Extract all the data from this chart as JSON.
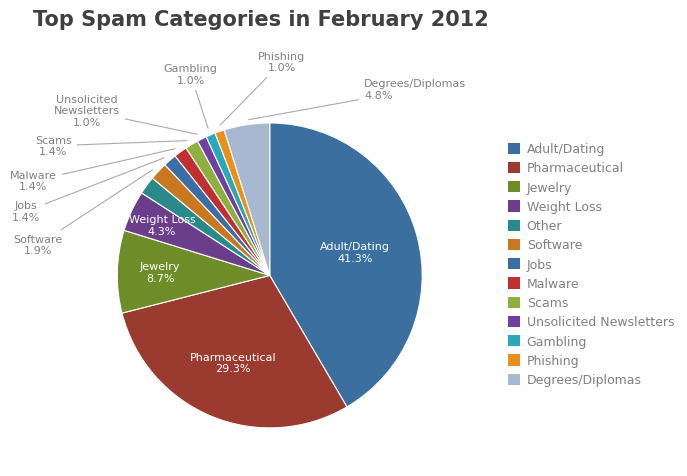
{
  "title": "Top Spam Categories in February 2012",
  "categories": [
    "Adult/Dating",
    "Pharmaceutical",
    "Jewelry",
    "Weight Loss",
    "Other",
    "Software",
    "Jobs",
    "Malware",
    "Scams",
    "Unsolicited Newsletters",
    "Gambling",
    "Phishing",
    "Degrees/Diplomas"
  ],
  "values": [
    41.3,
    29.3,
    8.7,
    4.3,
    1.9,
    1.9,
    1.4,
    1.4,
    1.4,
    1.0,
    1.0,
    1.0,
    4.8
  ],
  "colors": [
    "#3B6FA0",
    "#9B3A2E",
    "#6E8C28",
    "#6B3D8A",
    "#2A8A8A",
    "#C97820",
    "#3A6EA5",
    "#C03030",
    "#8DB03E",
    "#7040A0",
    "#28A8B8",
    "#E8901A",
    "#A8B8D0"
  ],
  "background_color": "#FFFFFF",
  "title_fontsize": 15,
  "title_color": "#404040",
  "label_color": "#808080",
  "legend_text_color": "#808080"
}
